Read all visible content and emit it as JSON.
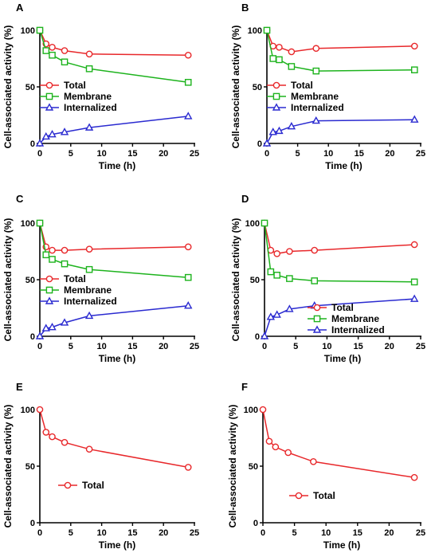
{
  "colors": {
    "Total": "#e8282b",
    "Membrane": "#1db31d",
    "Internalized": "#2a2ad0",
    "axis": "#000000"
  },
  "chart_data": [
    {
      "panel": "A",
      "type": "line",
      "xlabel": "Time (h)",
      "ylabel": "Cell-associated activity (%)",
      "xlim": [
        0,
        25
      ],
      "ylim": [
        0,
        100
      ],
      "xticks": [
        "0",
        "5",
        "10",
        "15",
        "20",
        "25"
      ],
      "yticks": [
        "0",
        "50",
        "100"
      ],
      "legend_position": "middle-left",
      "series": [
        {
          "name": "Total",
          "marker": "circle",
          "x": [
            0,
            1,
            2,
            4,
            8,
            24
          ],
          "y": [
            100,
            88,
            85,
            82,
            79,
            78
          ]
        },
        {
          "name": "Membrane",
          "marker": "square",
          "x": [
            0,
            1,
            2,
            4,
            8,
            24
          ],
          "y": [
            100,
            82,
            78,
            72,
            66,
            54
          ]
        },
        {
          "name": "Internalized",
          "marker": "triangle",
          "x": [
            0,
            1,
            2,
            4,
            8,
            24
          ],
          "y": [
            0,
            6,
            8,
            10,
            14,
            24
          ]
        }
      ]
    },
    {
      "panel": "B",
      "type": "line",
      "xlabel": "Time (h)",
      "ylabel": "Cell-associated activity (%)",
      "xlim": [
        0,
        25
      ],
      "ylim": [
        0,
        100
      ],
      "xticks": [
        "0",
        "5",
        "10",
        "15",
        "20",
        "25"
      ],
      "yticks": [
        "0",
        "50",
        "100"
      ],
      "legend_position": "middle-left",
      "series": [
        {
          "name": "Total",
          "marker": "circle",
          "x": [
            0,
            1,
            2,
            4,
            8,
            24
          ],
          "y": [
            100,
            86,
            85,
            81,
            84,
            86
          ]
        },
        {
          "name": "Membrane",
          "marker": "square",
          "x": [
            0,
            1,
            2,
            4,
            8,
            24
          ],
          "y": [
            100,
            75,
            74,
            68,
            64,
            65
          ]
        },
        {
          "name": "Internalized",
          "marker": "triangle",
          "x": [
            0,
            1,
            2,
            4,
            8,
            24
          ],
          "y": [
            0,
            10,
            11,
            15,
            20,
            21
          ]
        }
      ]
    },
    {
      "panel": "C",
      "type": "line",
      "xlabel": "Time (h)",
      "ylabel": "Cell-associated activity (%)",
      "xlim": [
        0,
        25
      ],
      "ylim": [
        0,
        100
      ],
      "xticks": [
        "0",
        "5",
        "10",
        "15",
        "20",
        "25"
      ],
      "yticks": [
        "0",
        "50",
        "100"
      ],
      "legend_position": "middle-left",
      "series": [
        {
          "name": "Total",
          "marker": "circle",
          "x": [
            0,
            1,
            2,
            4,
            8,
            24
          ],
          "y": [
            100,
            79,
            76,
            76,
            77,
            79
          ]
        },
        {
          "name": "Membrane",
          "marker": "square",
          "x": [
            0,
            1,
            2,
            4,
            8,
            24
          ],
          "y": [
            100,
            72,
            68,
            64,
            59,
            52
          ]
        },
        {
          "name": "Internalized",
          "marker": "triangle",
          "x": [
            0,
            1,
            2,
            4,
            8,
            24
          ],
          "y": [
            0,
            7,
            8,
            12,
            18,
            27
          ]
        }
      ]
    },
    {
      "panel": "D",
      "type": "line",
      "xlabel": "Time (h)",
      "ylabel": "Cell-associated activity (%)",
      "xlim": [
        0,
        25
      ],
      "ylim": [
        0,
        100
      ],
      "xticks": [
        "0",
        "5",
        "10",
        "15",
        "20",
        "25"
      ],
      "yticks": [
        "0",
        "50",
        "100"
      ],
      "legend_position": "lower-right",
      "series": [
        {
          "name": "Total",
          "marker": "circle",
          "x": [
            0,
            1,
            2,
            4,
            8,
            24
          ],
          "y": [
            100,
            76,
            73,
            75,
            76,
            81
          ]
        },
        {
          "name": "Membrane",
          "marker": "square",
          "x": [
            0,
            1,
            2,
            4,
            8,
            24
          ],
          "y": [
            100,
            57,
            54,
            51,
            49,
            48
          ]
        },
        {
          "name": "Internalized",
          "marker": "triangle",
          "x": [
            0,
            1,
            2,
            4,
            8,
            24
          ],
          "y": [
            0,
            17,
            19,
            24,
            27,
            33
          ]
        }
      ]
    },
    {
      "panel": "E",
      "type": "line",
      "xlabel": "Time (h)",
      "ylabel": "Cell-associated activity (%)",
      "xlim": [
        0,
        25
      ],
      "ylim": [
        0,
        100
      ],
      "xticks": [
        "0",
        "5",
        "10",
        "15",
        "20",
        "25"
      ],
      "yticks": [
        "0",
        "50",
        "100"
      ],
      "legend_position": "lower-left",
      "series": [
        {
          "name": "Total",
          "marker": "circle",
          "x": [
            0,
            1,
            2,
            4,
            8,
            24
          ],
          "y": [
            100,
            80,
            76,
            71,
            65,
            49
          ]
        }
      ]
    },
    {
      "panel": "F",
      "type": "line",
      "xlabel": "Time (h)",
      "ylabel": "Cell-associated activity (%)",
      "xlim": [
        0,
        25
      ],
      "ylim": [
        0,
        100
      ],
      "xticks": [
        "0",
        "5",
        "10",
        "15",
        "20",
        "25"
      ],
      "yticks": [
        "0",
        "50",
        "100"
      ],
      "legend_position": "lower-left",
      "series": [
        {
          "name": "Total",
          "marker": "circle",
          "x": [
            0,
            1,
            2,
            4,
            8,
            24
          ],
          "y": [
            100,
            72,
            67,
            62,
            54,
            40
          ]
        }
      ]
    }
  ]
}
